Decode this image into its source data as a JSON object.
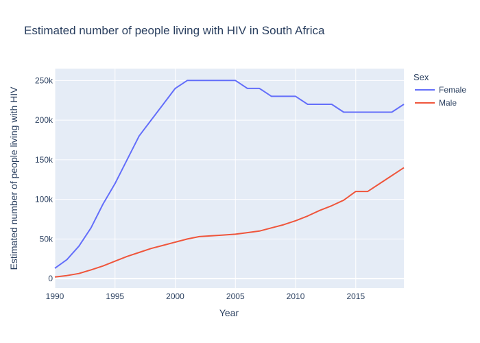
{
  "chart_data": {
    "type": "line",
    "title": "Estimated number of people living with HIV in South Africa",
    "xlabel": "Year",
    "ylabel": "Estimated number of people living with HIV",
    "xlim": [
      1990,
      2019
    ],
    "ylim": [
      -12000,
      265000
    ],
    "x_ticks": [
      1990,
      1995,
      2000,
      2005,
      2010,
      2015
    ],
    "y_ticks": [
      {
        "value": 0,
        "label": "0"
      },
      {
        "value": 50000,
        "label": "50k"
      },
      {
        "value": 100000,
        "label": "100k"
      },
      {
        "value": 150000,
        "label": "150k"
      },
      {
        "value": 200000,
        "label": "200k"
      },
      {
        "value": 250000,
        "label": "250k"
      }
    ],
    "grid": true,
    "legend_title": "Sex",
    "legend_position": "right",
    "x": [
      1990,
      1991,
      1992,
      1993,
      1994,
      1995,
      1996,
      1997,
      1998,
      1999,
      2000,
      2001,
      2002,
      2003,
      2004,
      2005,
      2006,
      2007,
      2008,
      2009,
      2010,
      2011,
      2012,
      2013,
      2014,
      2015,
      2016,
      2017,
      2018,
      2019
    ],
    "series": [
      {
        "name": "Female",
        "color": "#636efa",
        "values": [
          13000,
          24000,
          41000,
          64000,
          94000,
          120000,
          150000,
          180000,
          200000,
          220000,
          240000,
          250000,
          250000,
          250000,
          250000,
          250000,
          240000,
          240000,
          230000,
          230000,
          230000,
          220000,
          220000,
          220000,
          210000,
          210000,
          210000,
          210000,
          210000,
          220000
        ]
      },
      {
        "name": "Male",
        "color": "#ef553b",
        "values": [
          2000,
          3800,
          6400,
          11000,
          16000,
          22000,
          28000,
          33000,
          38000,
          42000,
          46000,
          50000,
          53000,
          54000,
          55000,
          56000,
          58000,
          60000,
          64000,
          68000,
          73000,
          79000,
          86000,
          92000,
          99000,
          110000,
          110000,
          120000,
          130000,
          140000
        ]
      }
    ]
  }
}
